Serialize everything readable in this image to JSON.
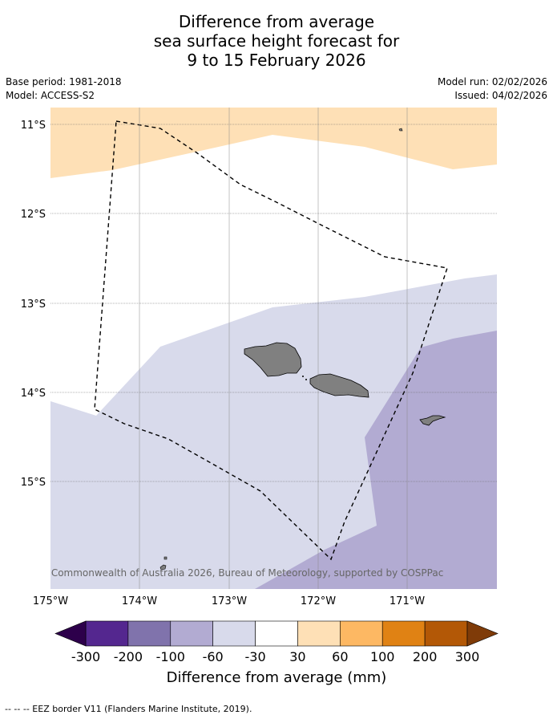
{
  "title": {
    "line1": "Difference from average",
    "line2": "sea surface height forecast for",
    "line3": "9 to 15 February 2026"
  },
  "meta": {
    "base_period": "Base period: 1981-2018",
    "model": "Model: ACCESS-S2",
    "model_run": "Model run: 02/02/2026",
    "issued": "Issued: 04/02/2026"
  },
  "map": {
    "lat_labels": [
      "11°S",
      "12°S",
      "13°S",
      "14°S",
      "15°S"
    ],
    "lon_labels": [
      "175°W",
      "174°W",
      "173°W",
      "172°W",
      "171°W"
    ],
    "copyright": "© Commonwealth of Australia 2026, Bureau of Meteorology, supported by COSPPac"
  },
  "legend": {
    "ticks": [
      "-300",
      "-200",
      "-100",
      "-60",
      "-30",
      "30",
      "60",
      "100",
      "200",
      "300"
    ],
    "colors": [
      "#54278f",
      "#8073ac",
      "#b2abd2",
      "#d8daeb",
      "#ffffff",
      "#fee0b6",
      "#fdb863",
      "#e08214",
      "#b35806"
    ],
    "under_color": "#2d004b",
    "over_color": "#7f3b08",
    "label": "Difference from average (mm)"
  },
  "footer": {
    "eez_note": "--  --  -- EEZ border V11 (Flanders Marine Institute, 2019)."
  }
}
